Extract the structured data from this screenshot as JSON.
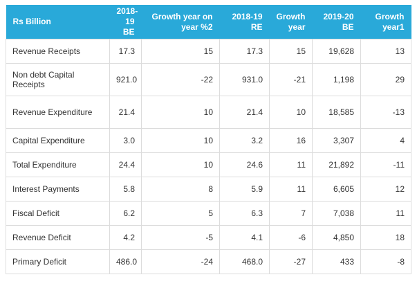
{
  "table": {
    "headers": [
      "Rs Billion",
      "2018-19 BE",
      "Growth year on year %2",
      "2018-19 RE",
      "Growth year",
      "2019-20 BE",
      "Growth year1"
    ],
    "rows": [
      [
        "Revenue Receipts",
        "17.3",
        "15",
        "17.3",
        "15",
        "19,628",
        "13"
      ],
      [
        "Non debt Capital Receipts",
        "921.0",
        "-22",
        "931.0",
        "-21",
        "1,198",
        "29"
      ],
      [
        "Revenue Expenditure",
        "21.4",
        "10",
        "21.4",
        "10",
        "18,585",
        "-13"
      ],
      [
        "Capital Expenditure",
        "3.0",
        "10",
        "3.2",
        "16",
        "3,307",
        "4"
      ],
      [
        "Total Expenditure",
        "24.4",
        "10",
        "24.6",
        "11",
        "21,892",
        "-11"
      ],
      [
        "Interest Payments",
        "5.8",
        "8",
        "5.9",
        "11",
        "6,605",
        "12"
      ],
      [
        "Fiscal Deficit",
        "6.2",
        "5",
        "6.3",
        "7",
        "7,038",
        "11"
      ],
      [
        "Revenue Deficit",
        "4.2",
        "-5",
        "4.1",
        "-6",
        "4,850",
        "18"
      ],
      [
        "Primary Deficit",
        "486.0",
        "-24",
        "468.0",
        "-27",
        "433",
        "-8"
      ]
    ]
  },
  "colors": {
    "header_bg": "#29a9d9",
    "header_text": "#ffffff",
    "border": "#dcdcdc",
    "body_text": "#333333"
  }
}
